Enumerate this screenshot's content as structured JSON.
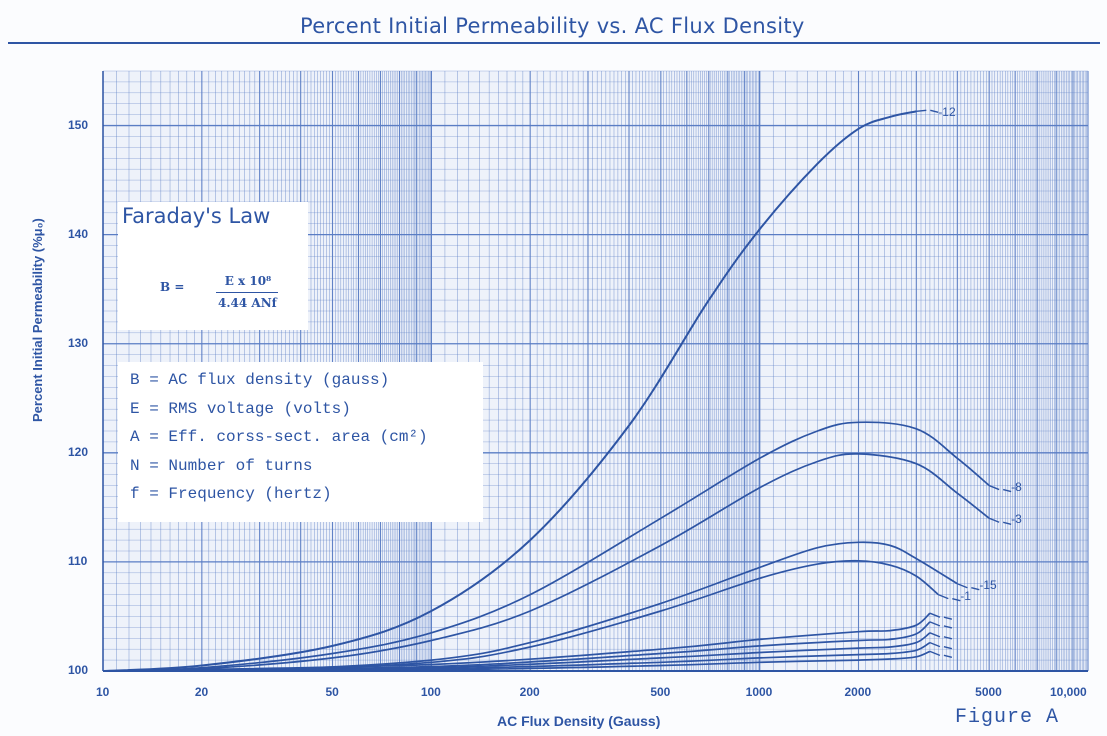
{
  "title": "Percent Initial Permeability vs. AC Flux Density",
  "figure_label": "Figure A",
  "legend": {
    "heading": "Faraday's Law",
    "formula": {
      "lhs": "B =",
      "numerator": "E x 10⁸",
      "denominator": "4.44 ANf"
    },
    "definitions": [
      "B = AC flux density (gauss)",
      "E = RMS voltage (volts)",
      "A = Eff. corss-sect. area (cm²)",
      "N = Number of turns",
      "f = Frequency (hertz)"
    ]
  },
  "colors": {
    "ink": "#2e55a4",
    "grid": "#5a7dc4",
    "background": "#fbfcfe",
    "legend_bg": "#ffffff"
  },
  "chart_data": {
    "type": "line",
    "title": "Percent Initial Permeability vs. AC Flux Density",
    "xlabel": "AC Flux Density (Gauss)",
    "ylabel": "Percent Initial Permeability (%μ₀)",
    "xscale": "log",
    "xlim": [
      10,
      10000
    ],
    "ylim": [
      100,
      155
    ],
    "grid": true,
    "x_ticks": [
      "10",
      "20",
      "50",
      "100",
      "200",
      "500",
      "1000",
      "2000",
      "5000",
      "10,000"
    ],
    "x_tick_values": [
      10,
      20,
      50,
      100,
      200,
      500,
      1000,
      2000,
      5000,
      10000
    ],
    "y_ticks": [
      "100",
      "110",
      "120",
      "130",
      "140",
      "150"
    ],
    "y_tick_values": [
      100,
      110,
      120,
      130,
      140,
      150
    ],
    "series": [
      {
        "name": "12",
        "x": [
          10,
          20,
          50,
          100,
          200,
          400,
          700,
          1000,
          1500,
          2000,
          2500,
          3000
        ],
        "y": [
          100,
          100.5,
          102.3,
          105.5,
          112,
          122.5,
          134,
          140.5,
          146.5,
          149.7,
          150.8,
          151.3
        ]
      },
      {
        "name": "8",
        "x": [
          10,
          20,
          50,
          100,
          200,
          500,
          1000,
          1500,
          2000,
          3000,
          4000,
          5000
        ],
        "y": [
          100,
          100.3,
          101.6,
          103.5,
          107,
          114,
          119.5,
          122,
          122.8,
          122.2,
          119.5,
          117
        ]
      },
      {
        "name": "3",
        "x": [
          10,
          20,
          50,
          100,
          200,
          500,
          1000,
          1500,
          2000,
          3000,
          4000,
          5000
        ],
        "y": [
          100,
          100.2,
          101.2,
          102.8,
          105.5,
          111.5,
          116.8,
          119.2,
          119.9,
          119,
          116.3,
          114
        ]
      },
      {
        "name": "15",
        "x": [
          10,
          30,
          100,
          200,
          500,
          1000,
          1500,
          2000,
          2500,
          3000,
          4000
        ],
        "y": [
          100,
          100.1,
          101,
          102.6,
          106.2,
          109.5,
          111.3,
          111.8,
          111.5,
          110.3,
          108
        ]
      },
      {
        "name": "1",
        "x": [
          10,
          30,
          100,
          200,
          500,
          1000,
          1500,
          2000,
          2500,
          3000,
          3500
        ],
        "y": [
          100,
          100.1,
          100.8,
          102.2,
          105.5,
          108.5,
          109.8,
          110.1,
          109.7,
          108.7,
          107
        ]
      },
      {
        "name": "",
        "x": [
          10,
          100,
          500,
          1000,
          2000,
          2500,
          3000,
          3300
        ],
        "y": [
          100,
          100.6,
          102,
          102.9,
          103.6,
          103.7,
          104.2,
          105.3
        ]
      },
      {
        "name": "",
        "x": [
          10,
          100,
          500,
          1000,
          2000,
          2500,
          3000,
          3300
        ],
        "y": [
          100,
          100.4,
          101.6,
          102.3,
          102.8,
          102.9,
          103.4,
          104.5
        ]
      },
      {
        "name": "",
        "x": [
          10,
          100,
          500,
          1000,
          2000,
          2500,
          3000,
          3300
        ],
        "y": [
          100,
          100.3,
          101.2,
          101.7,
          102.1,
          102.2,
          102.6,
          103.5
        ]
      },
      {
        "name": "",
        "x": [
          10,
          100,
          500,
          1000,
          2000,
          2500,
          3000,
          3300
        ],
        "y": [
          100,
          100.2,
          100.8,
          101.2,
          101.5,
          101.6,
          101.9,
          102.6
        ]
      },
      {
        "name": "",
        "x": [
          10,
          100,
          500,
          1000,
          2000,
          2500,
          3000,
          3300
        ],
        "y": [
          100,
          100.1,
          100.5,
          100.8,
          101,
          101.1,
          101.3,
          101.8
        ]
      }
    ]
  }
}
